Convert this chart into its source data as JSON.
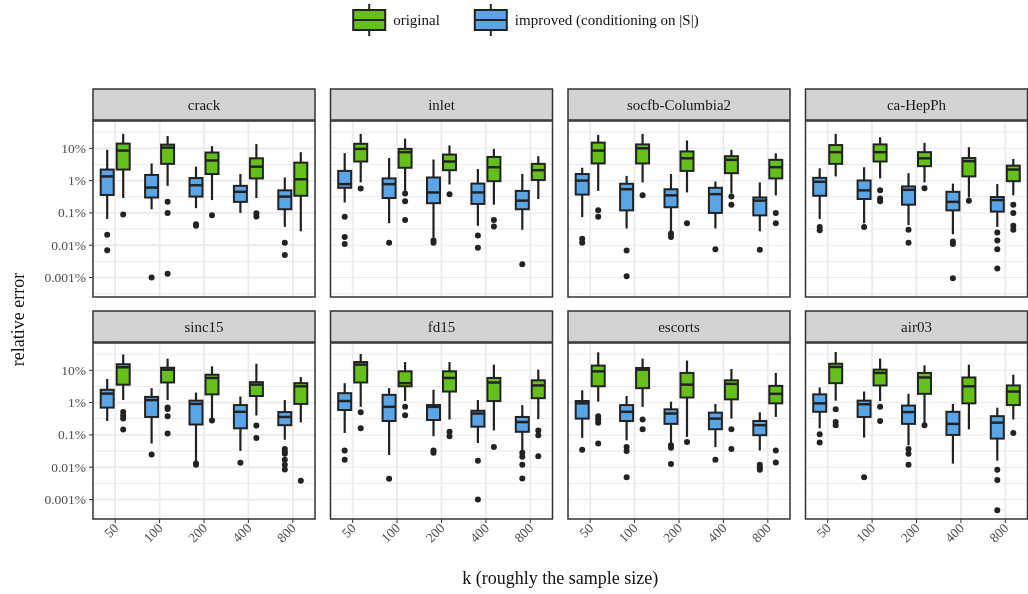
{
  "chart_data": [
    {
      "type": "box",
      "title": "crack",
      "legend": "top",
      "ylabel": "relative error",
      "tick_labels": "y",
      "grid": true,
      "log": "y",
      "ylim": [
        0.00025,
        70
      ],
      "yticks": [
        {
          "value": 0.000316,
          "label": null
        },
        {
          "value": 0.001,
          "label": "0.001%"
        },
        {
          "value": 0.00316,
          "label": null
        },
        {
          "value": 0.01,
          "label": "0.01%"
        },
        {
          "value": 0.0316,
          "label": null
        },
        {
          "value": 0.1,
          "label": "0.1%"
        },
        {
          "value": 0.316,
          "label": null
        },
        {
          "value": 1,
          "label": "1%"
        },
        {
          "value": 3.16,
          "label": null
        },
        {
          "value": 10,
          "label": "10%"
        },
        {
          "value": 31.6,
          "label": null
        }
      ],
      "categories": [
        "50",
        "100",
        "200",
        "400",
        "800"
      ],
      "series": [
        {
          "name": "improved (conditioning on |S|)",
          "color": "#5aa5e6",
          "boxes": [
            {
              "low": 0.065,
              "q1": 0.36,
              "median": 1.35,
              "q3": 2.2,
              "high": 9,
              "outliers": [
                0.021,
                0.007
              ]
            },
            {
              "low": 0.13,
              "q1": 0.3,
              "median": 0.61,
              "q3": 1.5,
              "high": 3.4,
              "outliers": [
                0.001
              ]
            },
            {
              "low": 0.14,
              "q1": 0.32,
              "median": 0.72,
              "q3": 1.2,
              "high": 2.7,
              "outliers": [
                0.045,
                0.04
              ]
            },
            {
              "low": 0.1,
              "q1": 0.22,
              "median": 0.45,
              "q3": 0.69,
              "high": 1.6
            },
            {
              "low": 0.037,
              "q1": 0.13,
              "median": 0.32,
              "q3": 0.5,
              "high": 1.25,
              "outliers": [
                0.012,
                0.005
              ]
            }
          ]
        },
        {
          "name": "original",
          "color": "#66c01a",
          "boxes": [
            {
              "low": 0.29,
              "q1": 2.2,
              "median": 8.5,
              "q3": 14,
              "high": 28,
              "outliers": [
                0.09
              ]
            },
            {
              "low": 0.69,
              "q1": 3.3,
              "median": 10.5,
              "q3": 13,
              "high": 24,
              "outliers": [
                0.22,
                0.1,
                0.0013
              ]
            },
            {
              "low": 0.25,
              "q1": 1.6,
              "median": 4.2,
              "q3": 7.4,
              "high": 11.7,
              "outliers": [
                0.085
              ]
            },
            {
              "low": 0.29,
              "q1": 1.17,
              "median": 2.7,
              "q3": 4.9,
              "high": 13.5,
              "outliers": [
                0.098,
                0.077
              ]
            },
            {
              "low": 0.027,
              "q1": 0.34,
              "median": 1.1,
              "q3": 3.6,
              "high": 7.6
            }
          ]
        }
      ]
    },
    {
      "type": "box",
      "title": "inlet",
      "tick_labels": false,
      "grid": true,
      "log": "y",
      "ylim": [
        0.00025,
        70
      ],
      "yticks": [
        {
          "value": 0.000316,
          "label": null
        },
        {
          "value": 0.001,
          "label": null
        },
        {
          "value": 0.00316,
          "label": null
        },
        {
          "value": 0.01,
          "label": null
        },
        {
          "value": 0.0316,
          "label": null
        },
        {
          "value": 0.1,
          "label": null
        },
        {
          "value": 0.316,
          "label": null
        },
        {
          "value": 1,
          "label": null
        },
        {
          "value": 3.16,
          "label": null
        },
        {
          "value": 10,
          "label": null
        },
        {
          "value": 31.6,
          "label": null
        }
      ],
      "categories": [
        "50",
        "100",
        "200",
        "400",
        "800"
      ],
      "series": [
        {
          "color": "#5aa5e6",
          "boxes": [
            {
              "low": 0.21,
              "q1": 0.6,
              "median": 0.78,
              "q3": 2,
              "high": 7.1,
              "outliers": [
                0.076,
                0.018,
                0.011
              ]
            },
            {
              "low": 0.048,
              "q1": 0.29,
              "median": 0.78,
              "q3": 1.17,
              "high": 5,
              "outliers": [
                0.012
              ]
            },
            {
              "low": 0.017,
              "q1": 0.2,
              "median": 0.43,
              "q3": 1.25,
              "high": 4.5,
              "outliers": [
                0.014,
                0.012
              ]
            },
            {
              "low": 0.04,
              "q1": 0.19,
              "median": 0.43,
              "q3": 0.81,
              "high": 2.3,
              "outliers": [
                0.02,
                0.0084
              ]
            },
            {
              "low": 0.03,
              "q1": 0.13,
              "median": 0.24,
              "q3": 0.48,
              "high": 1.6,
              "outliers": [
                0.0026
              ]
            }
          ]
        },
        {
          "color": "#66c01a",
          "boxes": [
            {
              "low": 0.88,
              "q1": 3.9,
              "median": 9.6,
              "q3": 13.8,
              "high": 28,
              "outliers": [
                0.57
              ]
            },
            {
              "low": 0.48,
              "q1": 2.5,
              "median": 7.6,
              "q3": 9.6,
              "high": 20,
              "outliers": [
                0.4,
                0.23,
                0.06
              ]
            },
            {
              "low": 0.76,
              "q1": 2.1,
              "median": 3.9,
              "q3": 6.4,
              "high": 12.3,
              "outliers": [
                0.38
              ]
            },
            {
              "low": 0.18,
              "q1": 0.96,
              "median": 2.6,
              "q3": 5.4,
              "high": 9.6,
              "outliers": [
                0.06,
                0.038
              ]
            },
            {
              "low": 0.27,
              "q1": 1.04,
              "median": 2.1,
              "q3": 3.3,
              "high": 5.7
            }
          ]
        }
      ]
    },
    {
      "type": "box",
      "title": "socfb-Columbia2",
      "tick_labels": false,
      "grid": true,
      "log": "y",
      "ylim": [
        0.00025,
        70
      ],
      "yticks": [
        {
          "value": 0.000316,
          "label": null
        },
        {
          "value": 0.001,
          "label": null
        },
        {
          "value": 0.00316,
          "label": null
        },
        {
          "value": 0.01,
          "label": null
        },
        {
          "value": 0.0316,
          "label": null
        },
        {
          "value": 0.1,
          "label": null
        },
        {
          "value": 0.316,
          "label": null
        },
        {
          "value": 1,
          "label": null
        },
        {
          "value": 3.16,
          "label": null
        },
        {
          "value": 10,
          "label": null
        },
        {
          "value": 31.6,
          "label": null
        }
      ],
      "categories": [
        "50",
        "100",
        "200",
        "400",
        "800"
      ],
      "series": [
        {
          "color": "#5aa5e6",
          "boxes": [
            {
              "low": 0.074,
              "q1": 0.37,
              "median": 1,
              "q3": 1.6,
              "high": 2.5,
              "outliers": [
                0.016,
                0.012
              ]
            },
            {
              "low": 0.033,
              "q1": 0.12,
              "median": 0.54,
              "q3": 0.8,
              "high": 1.4,
              "outliers": [
                0.0069,
                0.0011
              ]
            },
            {
              "low": 0.027,
              "q1": 0.15,
              "median": 0.35,
              "q3": 0.54,
              "high": 1.6,
              "outliers": [
                0.023,
                0.018
              ]
            },
            {
              "low": 0.033,
              "q1": 0.1,
              "median": 0.38,
              "q3": 0.6,
              "high": 0.94,
              "outliers": [
                0.0075
              ]
            },
            {
              "low": 0.027,
              "q1": 0.084,
              "median": 0.24,
              "q3": 0.3,
              "high": 0.88,
              "outliers": [
                0.0072
              ]
            }
          ]
        },
        {
          "color": "#66c01a",
          "boxes": [
            {
              "low": 0.48,
              "q1": 3.4,
              "median": 8.5,
              "q3": 15,
              "high": 26,
              "outliers": [
                0.12,
                0.076
              ]
            },
            {
              "low": 0.88,
              "q1": 3.4,
              "median": 10,
              "q3": 13.2,
              "high": 28,
              "outliers": [
                0.35
              ]
            },
            {
              "low": 0.43,
              "q1": 2,
              "median": 4.9,
              "q3": 8,
              "high": 17.5,
              "outliers": [
                0.048
              ]
            },
            {
              "low": 0.4,
              "q1": 1.7,
              "median": 4.4,
              "q3": 5.7,
              "high": 9,
              "outliers": [
                0.32,
                0.18
              ]
            },
            {
              "low": 0.35,
              "q1": 1.17,
              "median": 2.6,
              "q3": 4.4,
              "high": 7,
              "outliers": [
                0.1,
                0.048
              ]
            }
          ]
        }
      ]
    },
    {
      "type": "box",
      "title": "ca-HepPh",
      "tick_labels": false,
      "grid": true,
      "log": "y",
      "ylim": [
        0.00025,
        70
      ],
      "yticks": [
        {
          "value": 0.000316,
          "label": null
        },
        {
          "value": 0.001,
          "label": null
        },
        {
          "value": 0.00316,
          "label": null
        },
        {
          "value": 0.01,
          "label": null
        },
        {
          "value": 0.0316,
          "label": null
        },
        {
          "value": 0.1,
          "label": null
        },
        {
          "value": 0.316,
          "label": null
        },
        {
          "value": 1,
          "label": null
        },
        {
          "value": 3.16,
          "label": null
        },
        {
          "value": 10,
          "label": null
        },
        {
          "value": 31.6,
          "label": null
        }
      ],
      "categories": [
        "50",
        "100",
        "200",
        "400",
        "800"
      ],
      "series": [
        {
          "color": "#5aa5e6",
          "boxes": [
            {
              "low": 0.065,
              "q1": 0.34,
              "median": 0.92,
              "q3": 1.22,
              "high": 2.4,
              "outliers": [
                0.037,
                0.029
              ]
            },
            {
              "low": 0.048,
              "q1": 0.27,
              "median": 0.5,
              "q3": 1.01,
              "high": 2.6,
              "outliers": [
                0.037
              ]
            },
            {
              "low": 0.042,
              "q1": 0.18,
              "median": 0.52,
              "q3": 0.66,
              "high": 1.7,
              "outliers": [
                0.03,
                0.012
              ]
            },
            {
              "low": 0.022,
              "q1": 0.12,
              "median": 0.22,
              "q3": 0.45,
              "high": 0.81,
              "outliers": [
                0.013,
                0.011,
                0.00095
              ]
            },
            {
              "low": 0.037,
              "q1": 0.11,
              "median": 0.25,
              "q3": 0.31,
              "high": 0.78,
              "outliers": [
                0.025,
                0.014,
                0.0075,
                0.0019
              ]
            }
          ]
        },
        {
          "color": "#66c01a",
          "boxes": [
            {
              "low": 1.35,
              "q1": 3.3,
              "median": 7.6,
              "q3": 12.6,
              "high": 28
            },
            {
              "low": 1.17,
              "q1": 3.9,
              "median": 7.6,
              "q3": 13.2,
              "high": 22,
              "outliers": [
                0.5,
                0.28,
                0.23
              ]
            },
            {
              "low": 0.88,
              "q1": 2.8,
              "median": 4.9,
              "q3": 7.6,
              "high": 14.8,
              "outliers": [
                0.58
              ]
            },
            {
              "low": 0.3,
              "q1": 1.35,
              "median": 4,
              "q3": 5,
              "high": 10.8,
              "outliers": [
                0.24
              ]
            },
            {
              "low": 0.35,
              "q1": 0.96,
              "median": 2.2,
              "q3": 2.9,
              "high": 4.7,
              "outliers": [
                0.18,
                0.1,
                0.04,
                0.03
              ]
            }
          ]
        }
      ]
    },
    {
      "type": "box",
      "title": "sinc15",
      "grid": true,
      "log": "y",
      "ylim": [
        0.00025,
        70
      ],
      "yticks": [
        {
          "value": 0.000316,
          "label": null
        },
        {
          "value": 0.001,
          "label": "0.001%"
        },
        {
          "value": 0.00316,
          "label": null
        },
        {
          "value": 0.01,
          "label": "0.01%"
        },
        {
          "value": 0.0316,
          "label": null
        },
        {
          "value": 0.1,
          "label": "0.1%"
        },
        {
          "value": 0.316,
          "label": null
        },
        {
          "value": 1,
          "label": "1%"
        },
        {
          "value": 3.16,
          "label": null
        },
        {
          "value": 10,
          "label": "10%"
        },
        {
          "value": 31.6,
          "label": null
        }
      ],
      "categories": [
        "50",
        "100",
        "200",
        "400",
        "800"
      ],
      "series": [
        {
          "color": "#5aa5e6",
          "boxes": [
            {
              "low": 0.27,
              "q1": 0.7,
              "median": 1.9,
              "q3": 2.5,
              "high": 5.4
            },
            {
              "low": 0.054,
              "q1": 0.36,
              "median": 1.2,
              "q3": 1.5,
              "high": 2.8,
              "outliers": [
                0.025
              ]
            },
            {
              "low": 0.015,
              "q1": 0.21,
              "median": 0.91,
              "q3": 1.15,
              "high": 2.05,
              "outliers": [
                0.013,
                0.012
              ]
            },
            {
              "low": 0.032,
              "q1": 0.16,
              "median": 0.52,
              "q3": 0.84,
              "high": 1.55,
              "outliers": [
                0.0137
              ]
            },
            {
              "low": 0.071,
              "q1": 0.2,
              "median": 0.36,
              "q3": 0.51,
              "high": 1.2,
              "outliers": [
                0.037,
                0.03,
                0.026,
                0.017,
                0.012,
                0.0085
              ]
            }
          ]
        },
        {
          "color": "#66c01a",
          "boxes": [
            {
              "low": 1.2,
              "q1": 3.6,
              "median": 12.4,
              "q3": 15.4,
              "high": 31,
              "outliers": [
                0.51,
                0.4,
                0.32,
                0.148
              ]
            },
            {
              "low": 1.2,
              "q1": 4.2,
              "median": 10.5,
              "q3": 12,
              "high": 23,
              "outliers": [
                0.7,
                0.63,
                0.38,
                0.11
              ]
            },
            {
              "low": 0.3,
              "q1": 1.8,
              "median": 5.8,
              "q3": 7.3,
              "high": 13.3,
              "outliers": [
                0.28
              ]
            },
            {
              "low": 0.4,
              "q1": 1.6,
              "median": 3.6,
              "q3": 4.3,
              "high": 16,
              "outliers": [
                0.195,
                0.081
              ]
            },
            {
              "low": 0.245,
              "q1": 0.91,
              "median": 3.2,
              "q3": 4,
              "high": 6.2,
              "outliers": [
                0.0038
              ]
            }
          ]
        }
      ]
    },
    {
      "type": "box",
      "title": "fd15",
      "xlabel": "k (roughly the sample size)",
      "tick_labels": "x",
      "grid": true,
      "log": "y",
      "ylim": [
        0.00025,
        70
      ],
      "yticks": [
        {
          "value": 0.000316,
          "label": null
        },
        {
          "value": 0.001,
          "label": null
        },
        {
          "value": 0.00316,
          "label": null
        },
        {
          "value": 0.01,
          "label": null
        },
        {
          "value": 0.0316,
          "label": null
        },
        {
          "value": 0.1,
          "label": null
        },
        {
          "value": 0.316,
          "label": null
        },
        {
          "value": 1,
          "label": null
        },
        {
          "value": 3.16,
          "label": null
        },
        {
          "value": 10,
          "label": null
        },
        {
          "value": 31.6,
          "label": null
        }
      ],
      "categories": [
        "50",
        "100",
        "200",
        "400",
        "800"
      ],
      "series": [
        {
          "color": "#5aa5e6",
          "boxes": [
            {
              "low": 0.115,
              "q1": 0.59,
              "median": 1.12,
              "q3": 1.96,
              "high": 4,
              "outliers": [
                0.033,
                0.017
              ]
            },
            {
              "low": 0.024,
              "q1": 0.27,
              "median": 0.74,
              "q3": 1.74,
              "high": 2.8,
              "outliers": [
                0.0044
              ]
            },
            {
              "low": 0.091,
              "q1": 0.29,
              "median": 0.74,
              "q3": 0.84,
              "high": 2.5,
              "outliers": [
                0.033,
                0.028
              ]
            },
            {
              "low": 0.056,
              "q1": 0.18,
              "median": 0.46,
              "q3": 0.56,
              "high": 1.2,
              "outliers": [
                0.016,
                0.001
              ]
            },
            {
              "low": 0.033,
              "q1": 0.125,
              "median": 0.25,
              "q3": 0.36,
              "high": 0.84,
              "outliers": [
                0.028,
                0.021,
                0.012,
                0.0045
              ]
            }
          ]
        },
        {
          "color": "#66c01a",
          "boxes": [
            {
              "low": 0.74,
              "q1": 4.2,
              "median": 15,
              "q3": 18,
              "high": 32,
              "outliers": [
                0.5,
                0.16
              ]
            },
            {
              "low": 1.12,
              "q1": 3.2,
              "median": 4,
              "q3": 9.3,
              "high": 18,
              "outliers": [
                0.74,
                0.41
              ]
            },
            {
              "low": 0.3,
              "q1": 2.2,
              "median": 5.8,
              "q3": 9.3,
              "high": 18,
              "outliers": [
                0.125,
                0.091
              ]
            },
            {
              "low": 0.137,
              "q1": 1.12,
              "median": 4.2,
              "q3": 5.8,
              "high": 15,
              "outliers": [
                0.042
              ]
            },
            {
              "low": 0.31,
              "q1": 1.37,
              "median": 3.4,
              "q3": 4.9,
              "high": 10.5,
              "outliers": [
                0.137,
                0.098,
                0.022
              ]
            }
          ]
        }
      ]
    },
    {
      "type": "box",
      "title": "escorts",
      "tick_labels": "x",
      "grid": true,
      "log": "y",
      "ylim": [
        0.00025,
        70
      ],
      "yticks": [
        {
          "value": 0.000316,
          "label": null
        },
        {
          "value": 0.001,
          "label": null
        },
        {
          "value": 0.00316,
          "label": null
        },
        {
          "value": 0.01,
          "label": null
        },
        {
          "value": 0.0316,
          "label": null
        },
        {
          "value": 0.1,
          "label": null
        },
        {
          "value": 0.316,
          "label": null
        },
        {
          "value": 1,
          "label": null
        },
        {
          "value": 3.16,
          "label": null
        },
        {
          "value": 10,
          "label": null
        },
        {
          "value": 31.6,
          "label": null
        }
      ],
      "categories": [
        "50",
        "100",
        "200",
        "400",
        "800"
      ],
      "series": [
        {
          "color": "#5aa5e6",
          "boxes": [
            {
              "low": 0.081,
              "q1": 0.32,
              "median": 0.95,
              "q3": 1.12,
              "high": 2.4,
              "outliers": [
                0.035
              ]
            },
            {
              "low": 0.068,
              "q1": 0.27,
              "median": 0.52,
              "q3": 0.84,
              "high": 1.6,
              "outliers": [
                0.042,
                0.032,
                0.0049
              ]
            },
            {
              "low": 0.056,
              "q1": 0.22,
              "median": 0.46,
              "q3": 0.62,
              "high": 1.07,
              "outliers": [
                0.048,
                0.04,
                0.0126
              ]
            },
            {
              "low": 0.042,
              "q1": 0.15,
              "median": 0.32,
              "q3": 0.49,
              "high": 0.91,
              "outliers": [
                0.017
              ]
            },
            {
              "low": 0.033,
              "q1": 0.098,
              "median": 0.2,
              "q3": 0.27,
              "high": 0.5,
              "outliers": [
                0.012,
                0.01,
                0.0083
              ]
            }
          ]
        },
        {
          "color": "#66c01a",
          "boxes": [
            {
              "low": 1.07,
              "q1": 3.2,
              "median": 9.3,
              "q3": 14,
              "high": 36,
              "outliers": [
                0.38,
                0.3,
                0.24,
                0.054
              ]
            },
            {
              "low": 0.74,
              "q1": 2.8,
              "median": 10.5,
              "q3": 11.8,
              "high": 23,
              "outliers": [
                0.3,
                0.15
              ]
            },
            {
              "low": 0.087,
              "q1": 1.44,
              "median": 3.6,
              "q3": 8.3,
              "high": 20,
              "outliers": [
                0.06
              ]
            },
            {
              "low": 0.32,
              "q1": 1.26,
              "median": 3.8,
              "q3": 4.9,
              "high": 11,
              "outliers": [
                0.15,
                0.037
              ]
            },
            {
              "low": 0.36,
              "q1": 0.95,
              "median": 1.87,
              "q3": 3.3,
              "high": 8.3,
              "outliers": [
                0.033,
                0.014
              ]
            }
          ]
        }
      ]
    },
    {
      "type": "box",
      "title": "air03",
      "tick_labels": "x",
      "grid": true,
      "log": "y",
      "ylim": [
        0.00025,
        70
      ],
      "yticks": [
        {
          "value": 0.000316,
          "label": null
        },
        {
          "value": 0.001,
          "label": null
        },
        {
          "value": 0.00316,
          "label": null
        },
        {
          "value": 0.01,
          "label": null
        },
        {
          "value": 0.0316,
          "label": null
        },
        {
          "value": 0.1,
          "label": null
        },
        {
          "value": 0.316,
          "label": null
        },
        {
          "value": 1,
          "label": null
        },
        {
          "value": 3.16,
          "label": null
        },
        {
          "value": 10,
          "label": null
        },
        {
          "value": 31.6,
          "label": null
        }
      ],
      "categories": [
        "50",
        "100",
        "200",
        "400",
        "800"
      ],
      "series": [
        {
          "color": "#5aa5e6",
          "boxes": [
            {
              "low": 0.16,
              "q1": 0.52,
              "median": 0.95,
              "q3": 1.8,
              "high": 2.95,
              "outliers": [
                0.105,
                0.058
              ]
            },
            {
              "low": 0.083,
              "q1": 0.36,
              "median": 0.89,
              "q3": 1.15,
              "high": 2.2,
              "outliers": [
                0.0049
              ]
            },
            {
              "low": 0.048,
              "q1": 0.22,
              "median": 0.51,
              "q3": 0.81,
              "high": 1.87,
              "outliers": [
                0.037,
                0.026,
                0.0119
              ]
            },
            {
              "low": 0.013,
              "q1": 0.1,
              "median": 0.22,
              "q3": 0.52,
              "high": 0.91
            },
            {
              "low": 0.016,
              "q1": 0.077,
              "median": 0.24,
              "q3": 0.38,
              "high": 0.7,
              "outliers": [
                0.0083,
                0.004,
                0.00047
              ]
            }
          ]
        },
        {
          "color": "#66c01a",
          "boxes": [
            {
              "low": 1.15,
              "q1": 4,
              "median": 12.7,
              "q3": 16,
              "high": 37,
              "outliers": [
                0.62,
                0.25,
                0.2
              ]
            },
            {
              "low": 1.12,
              "q1": 3.4,
              "median": 8.3,
              "q3": 10.5,
              "high": 23,
              "outliers": [
                0.74,
                0.27
              ]
            },
            {
              "low": 0.215,
              "q1": 1.87,
              "median": 6,
              "q3": 8.3,
              "high": 14.3,
              "outliers": [
                0.2
              ]
            },
            {
              "low": 0.148,
              "q1": 0.95,
              "median": 3.2,
              "q3": 6,
              "high": 15
            },
            {
              "low": 0.3,
              "q1": 0.84,
              "median": 2.2,
              "q3": 3.4,
              "high": 7.3,
              "outliers": [
                0.115
              ]
            }
          ]
        }
      ]
    }
  ]
}
